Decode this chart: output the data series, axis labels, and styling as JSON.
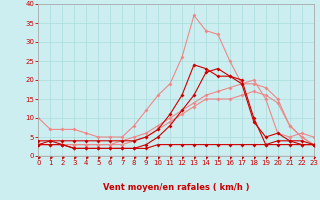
{
  "background_color": "#cceef0",
  "grid_color": "#aadddd",
  "xlabel": "Vent moyen/en rafales ( km/h )",
  "xlabel_color": "#cc0000",
  "xlabel_fontsize": 6,
  "tick_color": "#cc0000",
  "tick_fontsize": 5,
  "xlim": [
    0,
    23
  ],
  "ylim": [
    0,
    40
  ],
  "yticks": [
    0,
    5,
    10,
    15,
    20,
    25,
    30,
    35,
    40
  ],
  "xticks": [
    0,
    1,
    2,
    3,
    4,
    5,
    6,
    7,
    8,
    9,
    10,
    11,
    12,
    13,
    14,
    15,
    16,
    17,
    18,
    19,
    20,
    21,
    22,
    23
  ],
  "lines": [
    {
      "x": [
        0,
        1,
        2,
        3,
        4,
        5,
        6,
        7,
        8,
        9,
        10,
        11,
        12,
        13,
        14,
        15,
        16,
        17,
        18,
        19,
        20,
        21,
        22,
        23
      ],
      "y": [
        10,
        7,
        7,
        7,
        6,
        5,
        5,
        5,
        8,
        12,
        16,
        19,
        26,
        37,
        33,
        32,
        25,
        19,
        20,
        15,
        6,
        5,
        6,
        5
      ],
      "color": "#ee8888",
      "lw": 0.8,
      "ms": 2.0,
      "zorder": 2
    },
    {
      "x": [
        0,
        1,
        2,
        3,
        4,
        5,
        6,
        7,
        8,
        9,
        10,
        11,
        12,
        13,
        14,
        15,
        16,
        17,
        18,
        19,
        20,
        21,
        22,
        23
      ],
      "y": [
        3,
        3,
        3,
        3,
        3,
        3,
        3,
        4,
        5,
        6,
        8,
        10,
        12,
        14,
        16,
        17,
        18,
        19,
        19,
        18,
        15,
        8,
        5,
        3
      ],
      "color": "#ee8888",
      "lw": 0.8,
      "ms": 2.0,
      "zorder": 2
    },
    {
      "x": [
        0,
        1,
        2,
        3,
        4,
        5,
        6,
        7,
        8,
        9,
        10,
        11,
        12,
        13,
        14,
        15,
        16,
        17,
        18,
        19,
        20,
        21,
        22,
        23
      ],
      "y": [
        3,
        3,
        3,
        3,
        3,
        3,
        3,
        3,
        4,
        5,
        7,
        9,
        11,
        13,
        15,
        15,
        15,
        16,
        17,
        16,
        14,
        8,
        5,
        3
      ],
      "color": "#ee8888",
      "lw": 0.8,
      "ms": 2.0,
      "zorder": 2
    },
    {
      "x": [
        0,
        1,
        2,
        3,
        4,
        5,
        6,
        7,
        8,
        9,
        10,
        11,
        12,
        13,
        14,
        15,
        16,
        17,
        18,
        19,
        20,
        21,
        22,
        23
      ],
      "y": [
        3,
        3,
        3,
        2,
        2,
        2,
        2,
        2,
        2,
        2,
        3,
        3,
        3,
        3,
        3,
        3,
        3,
        3,
        3,
        3,
        3,
        3,
        3,
        3
      ],
      "color": "#cc0000",
      "lw": 0.8,
      "ms": 2.0,
      "zorder": 3
    },
    {
      "x": [
        0,
        1,
        2,
        3,
        4,
        5,
        6,
        7,
        8,
        9,
        10,
        11,
        12,
        13,
        14,
        15,
        16,
        17,
        18,
        19,
        20,
        21,
        22,
        23
      ],
      "y": [
        4,
        4,
        3,
        2,
        2,
        2,
        2,
        2,
        2,
        3,
        5,
        8,
        12,
        16,
        22,
        23,
        21,
        20,
        10,
        3,
        4,
        4,
        3,
        3
      ],
      "color": "#cc0000",
      "lw": 0.8,
      "ms": 2.0,
      "zorder": 3
    },
    {
      "x": [
        0,
        1,
        2,
        3,
        4,
        5,
        6,
        7,
        8,
        9,
        10,
        11,
        12,
        13,
        14,
        15,
        16,
        17,
        18,
        19,
        20,
        21,
        22,
        23
      ],
      "y": [
        3,
        4,
        4,
        4,
        4,
        4,
        4,
        4,
        4,
        5,
        7,
        11,
        16,
        24,
        23,
        21,
        21,
        19,
        9,
        5,
        6,
        4,
        4,
        3
      ],
      "color": "#cc0000",
      "lw": 0.8,
      "ms": 2.0,
      "zorder": 3
    }
  ],
  "arrow_color": "#cc0000",
  "spine_color": "#aaaaaa"
}
